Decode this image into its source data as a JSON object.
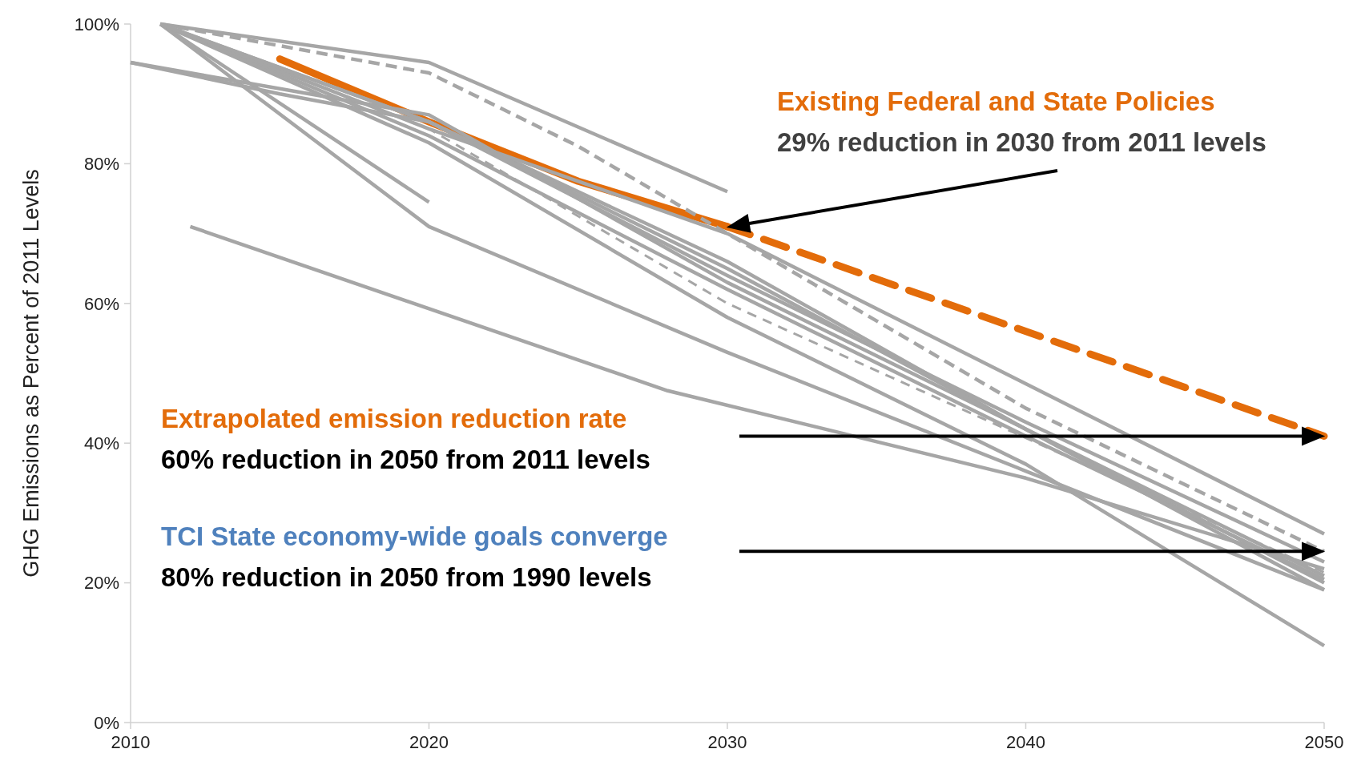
{
  "chart_data": {
    "type": "line",
    "ylabel": "GHG Emissions as Percent of 2011 Levels",
    "xlim": [
      2010,
      2050
    ],
    "xticks": [
      2010,
      2020,
      2030,
      2040,
      2050
    ],
    "ylim": [
      0,
      100
    ],
    "yticks": [
      {
        "value": 0,
        "label": "0%"
      },
      {
        "value": 20,
        "label": "20%"
      },
      {
        "value": 40,
        "label": "40%"
      },
      {
        "value": 60,
        "label": "60%"
      },
      {
        "value": 80,
        "label": "80%"
      },
      {
        "value": 100,
        "label": "100%"
      }
    ],
    "grid": false,
    "marker": "none",
    "series": [
      {
        "color": "#e36c0a",
        "x": [
          2015,
          2020,
          2025,
          2030
        ],
        "values": [
          95,
          86,
          77.5,
          71
        ]
      },
      {
        "color": "#e36c0a",
        "line_style": "dashed",
        "x": [
          2030,
          2050
        ],
        "values": [
          71,
          41
        ]
      },
      {
        "color": "#a6a6a6",
        "x": [
          2011,
          2020,
          2030
        ],
        "values": [
          100,
          94.5,
          76
        ]
      },
      {
        "color": "#a6a6a6",
        "line_style": "dashed",
        "x": [
          2011,
          2020,
          2025,
          2030,
          2040,
          2050
        ],
        "values": [
          100,
          93,
          82.5,
          70,
          45,
          24.5
        ]
      },
      {
        "color": "#a6a6a6",
        "x": [
          2011,
          2020
        ],
        "values": [
          100,
          74.5
        ]
      },
      {
        "color": "#a6a6a6",
        "x": [
          2011,
          2020,
          2030,
          2040,
          2050
        ],
        "values": [
          100,
          71,
          53,
          36,
          19
        ]
      },
      {
        "color": "#a6a6a6",
        "x": [
          2012,
          2028,
          2040,
          2050
        ],
        "values": [
          71,
          47.5,
          35,
          22
        ]
      },
      {
        "color": "#a6a6a6",
        "x": [
          2010,
          2015,
          2020,
          2030,
          2040,
          2050
        ],
        "values": [
          94.5,
          90,
          86,
          66,
          42,
          20
        ]
      },
      {
        "color": "#a6a6a6",
        "x": [
          2010,
          2020,
          2030,
          2050
        ],
        "values": [
          94.5,
          87,
          63,
          21
        ]
      },
      {
        "color": "#a6a6a6",
        "x": [
          2011,
          2020,
          2030,
          2040,
          2050
        ],
        "values": [
          100,
          86,
          64,
          43,
          23
        ]
      },
      {
        "color": "#a6a6a6",
        "x": [
          2011,
          2020,
          2030,
          2040,
          2050
        ],
        "values": [
          100,
          84,
          62,
          41,
          20.5
        ]
      },
      {
        "color": "#a6a6a6",
        "x": [
          2011,
          2020,
          2030,
          2040,
          2050
        ],
        "values": [
          100,
          83,
          58,
          37,
          11
        ]
      },
      {
        "color": "#a6a6a6",
        "x": [
          2011,
          2020,
          2030,
          2050
        ],
        "values": [
          100,
          85,
          70,
          27
        ]
      },
      {
        "color": "#a6a6a6",
        "line_style": "dotted",
        "x": [
          2011,
          2020,
          2030,
          2050
        ],
        "values": [
          100,
          85,
          60,
          21.5
        ]
      },
      {
        "color": "#a6a6a6",
        "x": [
          2011,
          2020,
          2030,
          2050
        ],
        "values": [
          100,
          86,
          65,
          19
        ]
      }
    ],
    "annotations": [
      "Existing Federal and State Policies",
      "29% reduction in 2030 from 2011 levels",
      "Extrapolated emission reduction rate",
      "60% reduction in 2050 from 2011 levels",
      "TCI State economy-wide goals converge",
      "80% reduction in 2050 from 1990 levels"
    ]
  }
}
